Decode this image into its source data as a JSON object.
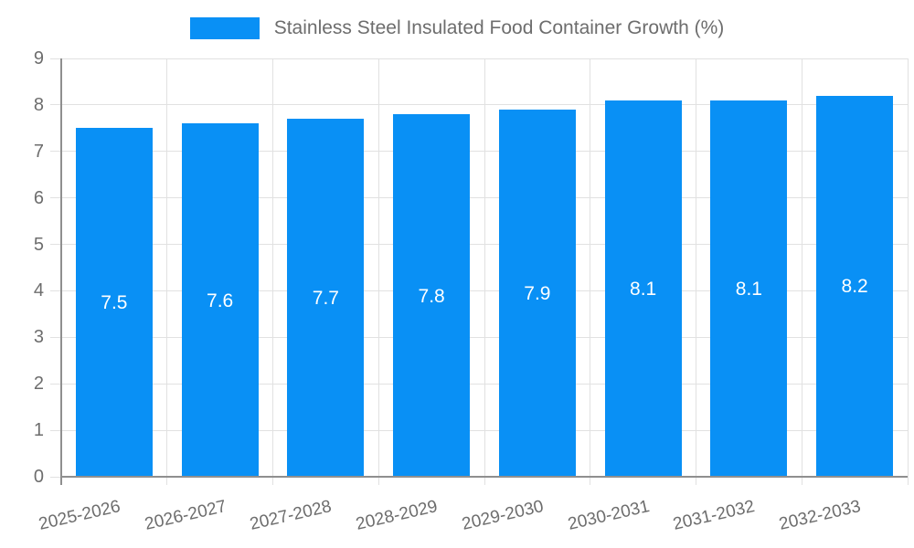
{
  "chart_data": {
    "type": "bar",
    "title": "Stainless Steel Insulated Food Container Growth (%)",
    "legend": {
      "position": "top",
      "label": "Stainless Steel Insulated Food Container Growth (%)"
    },
    "categories": [
      "2025-2026",
      "2026-2027",
      "2027-2028",
      "2028-2029",
      "2029-2030",
      "2030-2031",
      "2031-2032",
      "2032-2033"
    ],
    "values": [
      7.5,
      7.6,
      7.7,
      7.8,
      7.9,
      8.1,
      8.1,
      8.2
    ],
    "bar_labels": [
      "7.5",
      "7.6",
      "7.7",
      "7.8",
      "7.9",
      "8.1",
      "8.1",
      "8.2"
    ],
    "xlabel": "",
    "ylabel": "",
    "ylim": [
      0,
      9
    ],
    "y_ticks": [
      "0",
      "1",
      "2",
      "3",
      "4",
      "5",
      "6",
      "7",
      "8",
      "9"
    ],
    "grid": true,
    "x_tick_rotation_deg": -13,
    "colors": {
      "bar": "#0990f5",
      "grid": "#e1e1e1",
      "axis": "#8f8f8f",
      "tick_label": "#6d6d6d",
      "legend_text": "#6d6d6d",
      "bar_value_label": "#ffffff",
      "background": "#ffffff"
    }
  }
}
